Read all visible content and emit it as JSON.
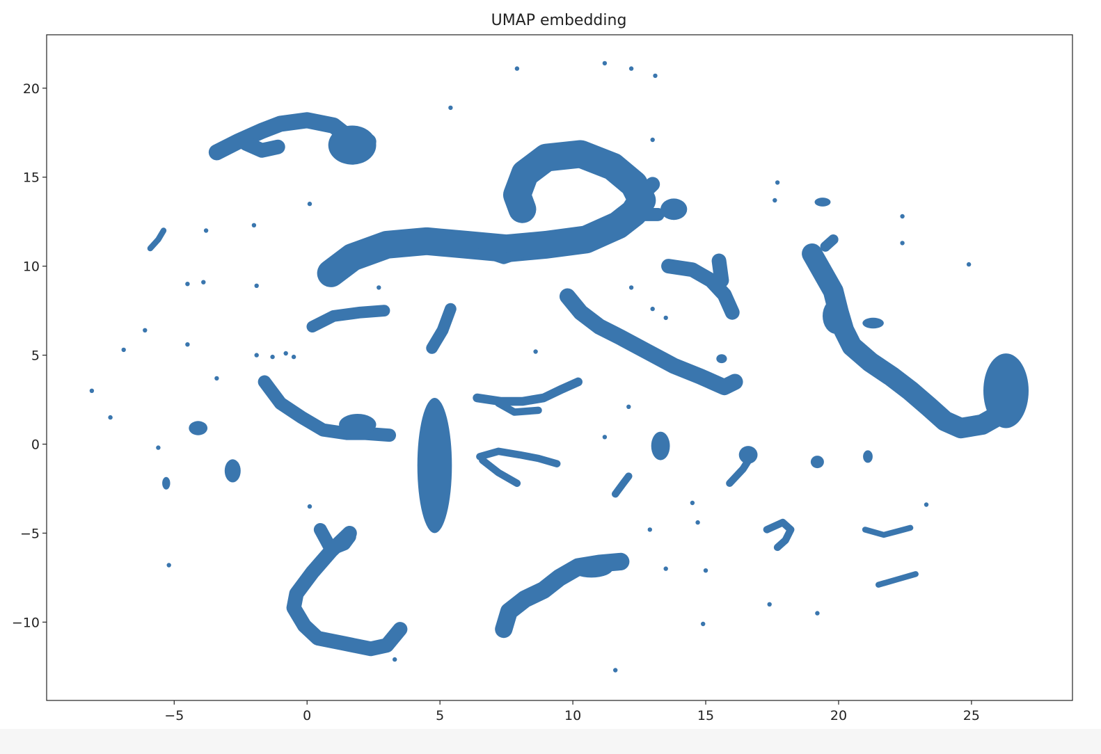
{
  "chart_data": {
    "type": "scatter",
    "title": "UMAP embedding",
    "xlabel": "",
    "ylabel": "",
    "xlim": [
      -9.8,
      28.8
    ],
    "ylim": [
      -14.4,
      23.0
    ],
    "x_ticks": [
      -5,
      0,
      5,
      10,
      15,
      20,
      25
    ],
    "x_tick_labels": [
      "−5",
      "0",
      "5",
      "10",
      "15",
      "20",
      "25"
    ],
    "y_ticks": [
      -10,
      -5,
      0,
      5,
      10,
      15,
      20
    ],
    "y_tick_labels": [
      "−10",
      "−5",
      "0",
      "5",
      "10",
      "15",
      "20"
    ],
    "grid": false,
    "legend": "none",
    "marker_color": "#3a76ae",
    "clusters": [
      {
        "kind": "path",
        "width": 1.1,
        "points": [
          [
            -3.4,
            16.4
          ],
          [
            -2.6,
            17.0
          ],
          [
            -1.7,
            17.6
          ],
          [
            -1.0,
            18.0
          ],
          [
            0,
            18.2
          ],
          [
            1.0,
            17.9
          ],
          [
            1.6,
            17.2
          ],
          [
            2.3,
            17.0
          ]
        ]
      },
      {
        "kind": "path",
        "width": 1.0,
        "points": [
          [
            -2.3,
            16.9
          ],
          [
            -1.7,
            16.5
          ],
          [
            -1.1,
            16.7
          ]
        ]
      },
      {
        "kind": "blob",
        "cx": 1.7,
        "cy": 16.8,
        "rx": 0.9,
        "ry": 1.1
      },
      {
        "kind": "path",
        "width": 1.9,
        "points": [
          [
            0.9,
            9.6
          ],
          [
            1.7,
            10.5
          ],
          [
            3.0,
            11.2
          ],
          [
            4.5,
            11.4
          ],
          [
            6.0,
            11.2
          ],
          [
            7.5,
            11.0
          ],
          [
            9.0,
            11.2
          ],
          [
            10.5,
            11.5
          ],
          [
            11.7,
            12.3
          ],
          [
            12.3,
            13.0
          ],
          [
            12.6,
            13.7
          ],
          [
            12.3,
            14.6
          ],
          [
            11.5,
            15.6
          ],
          [
            10.3,
            16.3
          ],
          [
            9.0,
            16.1
          ],
          [
            8.2,
            15.2
          ],
          [
            7.9,
            14.0
          ],
          [
            8.1,
            13.2
          ]
        ]
      },
      {
        "kind": "path",
        "width": 1.0,
        "points": [
          [
            12.3,
            13.6
          ],
          [
            13.0,
            14.6
          ]
        ]
      },
      {
        "kind": "path",
        "width": 0.9,
        "points": [
          [
            12.1,
            12.9
          ],
          [
            13.2,
            12.9
          ]
        ]
      },
      {
        "kind": "path",
        "width": 0.7,
        "points": [
          [
            6.6,
            10.8
          ],
          [
            7.4,
            10.4
          ],
          [
            8.2,
            10.8
          ]
        ]
      },
      {
        "kind": "blob",
        "cx": 13.8,
        "cy": 13.2,
        "rx": 0.5,
        "ry": 0.6
      },
      {
        "kind": "path",
        "width": 1.0,
        "points": [
          [
            13.6,
            10.0
          ],
          [
            14.5,
            9.8
          ],
          [
            15.2,
            9.2
          ],
          [
            15.7,
            8.4
          ],
          [
            16.0,
            7.4
          ]
        ]
      },
      {
        "kind": "path",
        "width": 1.0,
        "points": [
          [
            15.5,
            10.3
          ],
          [
            15.6,
            9.2
          ]
        ]
      },
      {
        "kind": "path",
        "width": 0.8,
        "points": [
          [
            0.2,
            6.6
          ],
          [
            1.0,
            7.2
          ],
          [
            2.0,
            7.4
          ],
          [
            2.9,
            7.5
          ]
        ]
      },
      {
        "kind": "path",
        "width": 0.8,
        "points": [
          [
            4.7,
            5.4
          ],
          [
            5.1,
            6.4
          ],
          [
            5.4,
            7.6
          ]
        ]
      },
      {
        "kind": "path",
        "width": 1.1,
        "points": [
          [
            9.8,
            8.3
          ],
          [
            10.3,
            7.4
          ],
          [
            11.0,
            6.6
          ],
          [
            11.8,
            6.0
          ],
          [
            12.8,
            5.2
          ],
          [
            13.8,
            4.4
          ],
          [
            14.8,
            3.8
          ],
          [
            15.7,
            3.2
          ],
          [
            16.1,
            3.5
          ]
        ]
      },
      {
        "kind": "path",
        "width": 1.4,
        "points": [
          [
            19.0,
            10.7
          ],
          [
            19.8,
            8.6
          ],
          [
            20.0,
            7.4
          ],
          [
            20.2,
            6.4
          ],
          [
            20.5,
            5.5
          ],
          [
            21.2,
            4.6
          ],
          [
            22.0,
            3.8
          ],
          [
            22.7,
            3.0
          ],
          [
            23.4,
            2.1
          ],
          [
            24.0,
            1.3
          ],
          [
            24.6,
            0.9
          ],
          [
            25.4,
            1.1
          ],
          [
            26.0,
            1.6
          ]
        ]
      },
      {
        "kind": "blob",
        "cx": 19.9,
        "cy": 7.2,
        "rx": 0.5,
        "ry": 1.0
      },
      {
        "kind": "blob",
        "cx": 26.3,
        "cy": 3.0,
        "rx": 0.85,
        "ry": 2.1
      },
      {
        "kind": "blob",
        "cx": 21.3,
        "cy": 6.8,
        "rx": 0.4,
        "ry": 0.3
      },
      {
        "kind": "path",
        "width": 0.7,
        "points": [
          [
            19.8,
            11.5
          ],
          [
            19.5,
            11.1
          ]
        ]
      },
      {
        "kind": "path",
        "width": 0.9,
        "points": [
          [
            -1.6,
            3.5
          ],
          [
            -1.0,
            2.3
          ],
          [
            -0.2,
            1.5
          ],
          [
            0.6,
            0.8
          ],
          [
            1.5,
            0.6
          ],
          [
            2.2,
            0.6
          ],
          [
            3.1,
            0.5
          ]
        ]
      },
      {
        "kind": "blob",
        "cx": 1.9,
        "cy": 1.1,
        "rx": 0.7,
        "ry": 0.6
      },
      {
        "kind": "blob",
        "cx": 4.8,
        "cy": -1.2,
        "rx": 0.65,
        "ry": 3.8
      },
      {
        "kind": "path",
        "width": 0.6,
        "points": [
          [
            6.4,
            2.6
          ],
          [
            7.3,
            2.4
          ],
          [
            8.1,
            2.4
          ],
          [
            8.9,
            2.6
          ],
          [
            9.6,
            3.1
          ],
          [
            10.2,
            3.5
          ]
        ]
      },
      {
        "kind": "path",
        "width": 0.5,
        "points": [
          [
            7.2,
            2.3
          ],
          [
            7.8,
            1.8
          ],
          [
            8.7,
            1.9
          ]
        ]
      },
      {
        "kind": "path",
        "width": 0.5,
        "points": [
          [
            6.5,
            -0.7
          ],
          [
            7.2,
            -0.4
          ],
          [
            8.0,
            -0.6
          ],
          [
            8.7,
            -0.8
          ],
          [
            9.4,
            -1.1
          ]
        ]
      },
      {
        "kind": "path",
        "width": 0.5,
        "points": [
          [
            6.6,
            -0.9
          ],
          [
            7.2,
            -1.6
          ],
          [
            7.9,
            -2.2
          ]
        ]
      },
      {
        "kind": "blob",
        "cx": 13.3,
        "cy": -0.1,
        "rx": 0.35,
        "ry": 0.8
      },
      {
        "kind": "path",
        "width": 0.5,
        "points": [
          [
            11.6,
            -2.8
          ],
          [
            11.9,
            -2.2
          ],
          [
            12.1,
            -1.8
          ]
        ]
      },
      {
        "kind": "path",
        "width": 0.5,
        "points": [
          [
            15.9,
            -2.2
          ],
          [
            16.4,
            -1.4
          ],
          [
            16.7,
            -0.7
          ]
        ]
      },
      {
        "kind": "blob",
        "cx": 16.6,
        "cy": -0.6,
        "rx": 0.35,
        "ry": 0.5
      },
      {
        "kind": "path",
        "width": 0.9,
        "points": [
          [
            0.5,
            -4.8
          ],
          [
            0.9,
            -5.9
          ],
          [
            1.4,
            -5.6
          ],
          [
            1.6,
            -5.2
          ]
        ]
      },
      {
        "kind": "path",
        "width": 1.0,
        "points": [
          [
            1.6,
            -5.0
          ],
          [
            0.9,
            -6.0
          ],
          [
            0.2,
            -7.2
          ],
          [
            -0.4,
            -8.4
          ],
          [
            -0.5,
            -9.2
          ],
          [
            -0.1,
            -10.2
          ],
          [
            0.4,
            -10.9
          ],
          [
            1.4,
            -11.2
          ],
          [
            2.4,
            -11.5
          ],
          [
            3.0,
            -11.3
          ],
          [
            3.5,
            -10.4
          ]
        ]
      },
      {
        "kind": "path",
        "width": 1.2,
        "points": [
          [
            7.4,
            -10.4
          ],
          [
            7.6,
            -9.4
          ],
          [
            8.2,
            -8.7
          ],
          [
            8.9,
            -8.2
          ],
          [
            9.5,
            -7.5
          ],
          [
            10.2,
            -6.9
          ],
          [
            11.0,
            -6.7
          ],
          [
            11.8,
            -6.6
          ]
        ]
      },
      {
        "kind": "blob",
        "cx": 10.7,
        "cy": -7.0,
        "rx": 0.8,
        "ry": 0.5
      },
      {
        "kind": "path",
        "width": 0.5,
        "points": [
          [
            17.3,
            -4.8
          ],
          [
            17.9,
            -4.4
          ],
          [
            18.2,
            -4.8
          ],
          [
            18.0,
            -5.4
          ],
          [
            17.7,
            -5.8
          ]
        ]
      },
      {
        "kind": "path",
        "width": 0.4,
        "points": [
          [
            21.0,
            -4.8
          ],
          [
            21.7,
            -5.1
          ],
          [
            22.2,
            -4.9
          ],
          [
            22.7,
            -4.7
          ]
        ]
      },
      {
        "kind": "path",
        "width": 0.4,
        "points": [
          [
            21.5,
            -7.9
          ],
          [
            22.2,
            -7.6
          ],
          [
            22.9,
            -7.3
          ]
        ]
      },
      {
        "kind": "path",
        "width": 0.4,
        "points": [
          [
            -5.9,
            11.0
          ],
          [
            -5.6,
            11.5
          ],
          [
            -5.4,
            12.0
          ]
        ]
      },
      {
        "kind": "blob",
        "cx": -4.1,
        "cy": 0.9,
        "rx": 0.35,
        "ry": 0.4
      },
      {
        "kind": "blob",
        "cx": -2.8,
        "cy": -1.5,
        "rx": 0.3,
        "ry": 0.65
      },
      {
        "kind": "blob",
        "cx": -5.3,
        "cy": -2.2,
        "rx": 0.15,
        "ry": 0.35
      },
      {
        "kind": "blob",
        "cx": 21.1,
        "cy": -0.7,
        "rx": 0.18,
        "ry": 0.35
      },
      {
        "kind": "blob",
        "cx": 19.2,
        "cy": -1.0,
        "rx": 0.25,
        "ry": 0.35
      },
      {
        "kind": "blob",
        "cx": 19.4,
        "cy": 13.6,
        "rx": 0.3,
        "ry": 0.25
      },
      {
        "kind": "blob",
        "cx": 15.6,
        "cy": 4.8,
        "rx": 0.2,
        "ry": 0.25
      }
    ],
    "isolated_points": [
      [
        7.9,
        21.1
      ],
      [
        11.2,
        21.4
      ],
      [
        12.2,
        21.1
      ],
      [
        13.1,
        20.7
      ],
      [
        5.4,
        18.9
      ],
      [
        13.0,
        17.1
      ],
      [
        17.7,
        14.7
      ],
      [
        17.6,
        13.7
      ],
      [
        22.4,
        12.8
      ],
      [
        22.4,
        11.3
      ],
      [
        24.9,
        10.1
      ],
      [
        0.1,
        13.5
      ],
      [
        -3.8,
        12.0
      ],
      [
        -2.0,
        12.3
      ],
      [
        -4.5,
        9.0
      ],
      [
        -3.9,
        9.1
      ],
      [
        -1.9,
        8.9
      ],
      [
        2.7,
        8.8
      ],
      [
        12.2,
        8.8
      ],
      [
        13.0,
        7.6
      ],
      [
        13.5,
        7.1
      ],
      [
        8.6,
        5.2
      ],
      [
        -6.1,
        6.4
      ],
      [
        -6.9,
        5.3
      ],
      [
        -4.5,
        5.6
      ],
      [
        -1.9,
        5.0
      ],
      [
        -0.8,
        5.1
      ],
      [
        -1.3,
        4.9
      ],
      [
        -0.5,
        4.9
      ],
      [
        -3.4,
        3.7
      ],
      [
        -8.1,
        3.0
      ],
      [
        -7.4,
        1.5
      ],
      [
        12.1,
        2.1
      ],
      [
        11.2,
        0.4
      ],
      [
        -5.6,
        -0.2
      ],
      [
        0.1,
        -3.5
      ],
      [
        14.5,
        -3.3
      ],
      [
        23.3,
        -3.4
      ],
      [
        12.9,
        -4.8
      ],
      [
        14.7,
        -4.4
      ],
      [
        13.5,
        -7.0
      ],
      [
        15.0,
        -7.1
      ],
      [
        -5.2,
        -6.8
      ],
      [
        17.4,
        -9.0
      ],
      [
        19.2,
        -9.5
      ],
      [
        14.9,
        -10.1
      ],
      [
        3.3,
        -12.1
      ],
      [
        11.6,
        -12.7
      ]
    ]
  }
}
